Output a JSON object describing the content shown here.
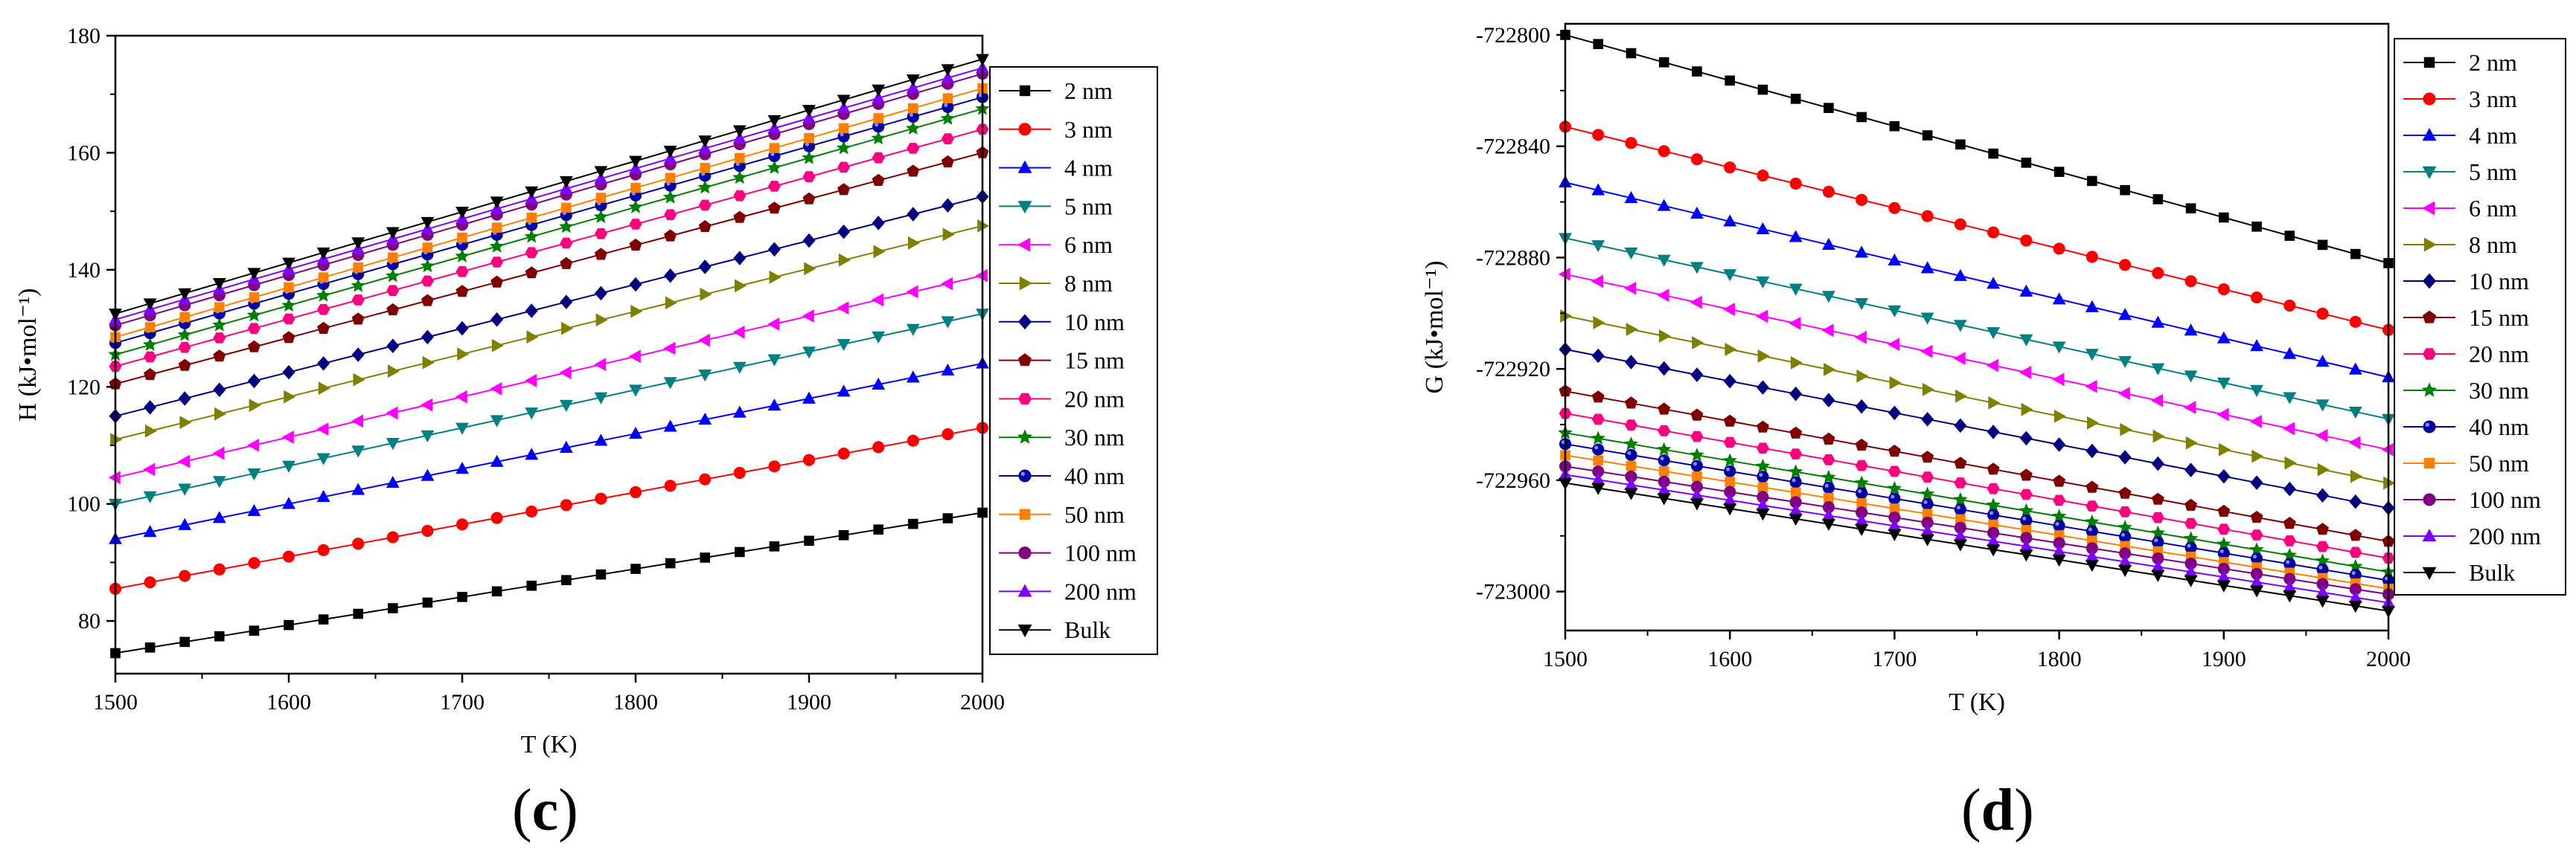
{
  "series_style": [
    {
      "name": "2 nm",
      "color": "#000000",
      "marker": "square"
    },
    {
      "name": "3 nm",
      "color": "#ff0000",
      "marker": "circle"
    },
    {
      "name": "4 nm",
      "color": "#0000ff",
      "marker": "triangle-up"
    },
    {
      "name": "5 nm",
      "color": "#008080",
      "marker": "triangle-down"
    },
    {
      "name": "6 nm",
      "color": "#ff00ff",
      "marker": "triangle-left"
    },
    {
      "name": "8 nm",
      "color": "#808000",
      "marker": "triangle-right"
    },
    {
      "name": "10 nm",
      "color": "#000080",
      "marker": "diamond"
    },
    {
      "name": "15 nm",
      "color": "#800000",
      "marker": "pentagon"
    },
    {
      "name": "20 nm",
      "color": "#ff007f",
      "marker": "hexagon"
    },
    {
      "name": "30 nm",
      "color": "#008000",
      "marker": "star"
    },
    {
      "name": "40 nm",
      "color": "#0000a0",
      "marker": "sphere"
    },
    {
      "name": "50 nm",
      "color": "#ff8000",
      "marker": "square"
    },
    {
      "name": "100 nm",
      "color": "#800080",
      "marker": "circle"
    },
    {
      "name": "200 nm",
      "color": "#8000ff",
      "marker": "triangle-up"
    },
    {
      "name": "Bulk",
      "color": "#000000",
      "marker": "triangle-down"
    }
  ],
  "chart_data": [
    {
      "type": "line",
      "caption": "c",
      "xlabel": "T (K)",
      "ylabel": "H (kJ•mol⁻¹)",
      "xlim": [
        1500,
        2000
      ],
      "ylim": [
        71,
        180
      ],
      "xticks": [
        "1500",
        "1600",
        "1700",
        "1800",
        "1900",
        "2000"
      ],
      "yticks": [
        "80",
        "100",
        "120",
        "140",
        "160",
        "180"
      ],
      "x": [
        1500,
        1520,
        1540,
        1560,
        1580,
        1600,
        1620,
        1640,
        1660,
        1680,
        1700,
        1720,
        1740,
        1760,
        1780,
        1800,
        1820,
        1840,
        1860,
        1880,
        1900,
        1920,
        1940,
        1960,
        1980,
        2000
      ],
      "series": [
        {
          "name": "2 nm",
          "start": 74.5,
          "end": 98.5
        },
        {
          "name": "3 nm",
          "start": 85.5,
          "end": 113
        },
        {
          "name": "4 nm",
          "start": 94,
          "end": 124
        },
        {
          "name": "5 nm",
          "start": 100,
          "end": 132.5
        },
        {
          "name": "6 nm",
          "start": 104.5,
          "end": 139
        },
        {
          "name": "8 nm",
          "start": 111,
          "end": 147.5
        },
        {
          "name": "10 nm",
          "start": 115,
          "end": 152.5
        },
        {
          "name": "15 nm",
          "start": 120.5,
          "end": 160
        },
        {
          "name": "20 nm",
          "start": 123.5,
          "end": 164
        },
        {
          "name": "30 nm",
          "start": 125.5,
          "end": 167.5
        },
        {
          "name": "40 nm",
          "start": 127.5,
          "end": 169.5
        },
        {
          "name": "50 nm",
          "start": 128.5,
          "end": 171
        },
        {
          "name": "100 nm",
          "start": 130.5,
          "end": 173.5
        },
        {
          "name": "200 nm",
          "start": 131.5,
          "end": 174.5
        },
        {
          "name": "Bulk",
          "start": 132.5,
          "end": 176
        }
      ]
    },
    {
      "type": "line",
      "caption": "d",
      "xlabel": "T (K)",
      "ylabel": "G (kJ•mol⁻¹)",
      "xlim": [
        1500,
        2000
      ],
      "ylim": [
        -723014,
        -722796
      ],
      "xticks": [
        "1500",
        "1600",
        "1700",
        "1800",
        "1900",
        "2000"
      ],
      "yticks": [
        "-723000",
        "-722960",
        "-722920",
        "-722880",
        "-722840",
        "-722800"
      ],
      "x": [
        1500,
        1520,
        1540,
        1560,
        1580,
        1600,
        1620,
        1640,
        1660,
        1680,
        1700,
        1720,
        1740,
        1760,
        1780,
        1800,
        1820,
        1840,
        1860,
        1880,
        1900,
        1920,
        1940,
        1960,
        1980,
        2000
      ],
      "series": [
        {
          "name": "2 nm",
          "start": -722800,
          "end": -722882
        },
        {
          "name": "3 nm",
          "start": -722833,
          "end": -722906
        },
        {
          "name": "4 nm",
          "start": -722853,
          "end": -722923
        },
        {
          "name": "5 nm",
          "start": -722873,
          "end": -722938
        },
        {
          "name": "6 nm",
          "start": -722886,
          "end": -722949
        },
        {
          "name": "8 nm",
          "start": -722901,
          "end": -722961
        },
        {
          "name": "10 nm",
          "start": -722913,
          "end": -722970
        },
        {
          "name": "15 nm",
          "start": -722928,
          "end": -722982
        },
        {
          "name": "20 nm",
          "start": -722936,
          "end": -722988
        },
        {
          "name": "30 nm",
          "start": -722943,
          "end": -722993
        },
        {
          "name": "40 nm",
          "start": -722947,
          "end": -722996
        },
        {
          "name": "50 nm",
          "start": -722951,
          "end": -722999
        },
        {
          "name": "100 nm",
          "start": -722955,
          "end": -723001
        },
        {
          "name": "200 nm",
          "start": -722958,
          "end": -723004
        },
        {
          "name": "Bulk",
          "start": -722961,
          "end": -723007
        }
      ]
    }
  ]
}
